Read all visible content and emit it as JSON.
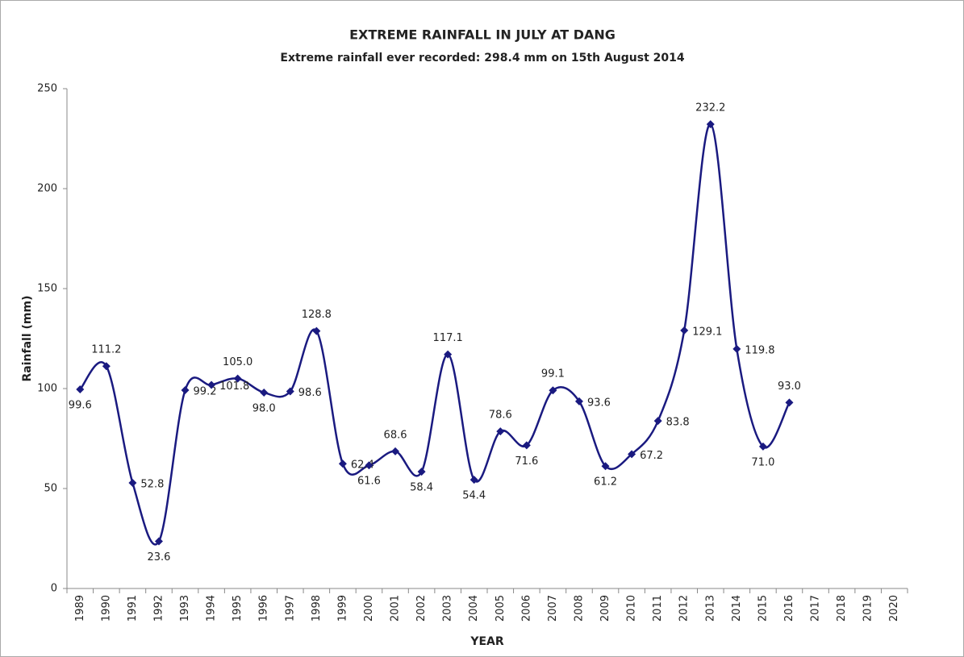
{
  "chart_data": {
    "type": "line",
    "title": "EXTREME RAINFALL IN JULY AT DANG",
    "subtitle": "Extreme rainfall ever recorded: 298.4 mm on 15th August 2014",
    "x_label": "YEAR",
    "y_label": "Rainfall (mm)",
    "categories": [
      "1989",
      "1990",
      "1991",
      "1992",
      "1993",
      "1994",
      "1995",
      "1996",
      "1997",
      "1998",
      "1999",
      "2000",
      "2001",
      "2002",
      "2003",
      "2004",
      "2005",
      "2006",
      "2007",
      "2008",
      "2009",
      "2010",
      "2011",
      "2012",
      "2013",
      "2014",
      "2015",
      "2016",
      "2017",
      "2018",
      "2019",
      "2020"
    ],
    "series": [
      {
        "name": "Rainfall",
        "color": "#1a1a80",
        "values": [
          99.6,
          111.2,
          52.8,
          23.6,
          99.2,
          101.8,
          105.0,
          98.0,
          98.6,
          128.8,
          62.4,
          61.6,
          68.6,
          58.4,
          117.1,
          54.4,
          78.6,
          71.6,
          99.1,
          93.6,
          61.2,
          67.2,
          83.8,
          129.1,
          232.2,
          119.8,
          71.0,
          93.0,
          null,
          null,
          null,
          null
        ],
        "value_labels": [
          "99.6",
          "111.2",
          "52.8",
          "23.6",
          "99.2",
          "101.8",
          "105.0",
          "98.0",
          "98.6",
          "128.8",
          "62.4",
          "61.6",
          "68.6",
          "58.4",
          "117.1",
          "54.4",
          "78.6",
          "71.6",
          "99.1",
          "93.6",
          "61.2",
          "67.2",
          "83.8",
          "129.1",
          "232.2",
          "119.8",
          "71.0",
          "93.0",
          null,
          null,
          null,
          null
        ]
      }
    ],
    "ylim": [
      0,
      250
    ],
    "yticks": [
      0,
      50,
      100,
      150,
      200,
      250
    ],
    "grid": false,
    "smooth": true
  }
}
